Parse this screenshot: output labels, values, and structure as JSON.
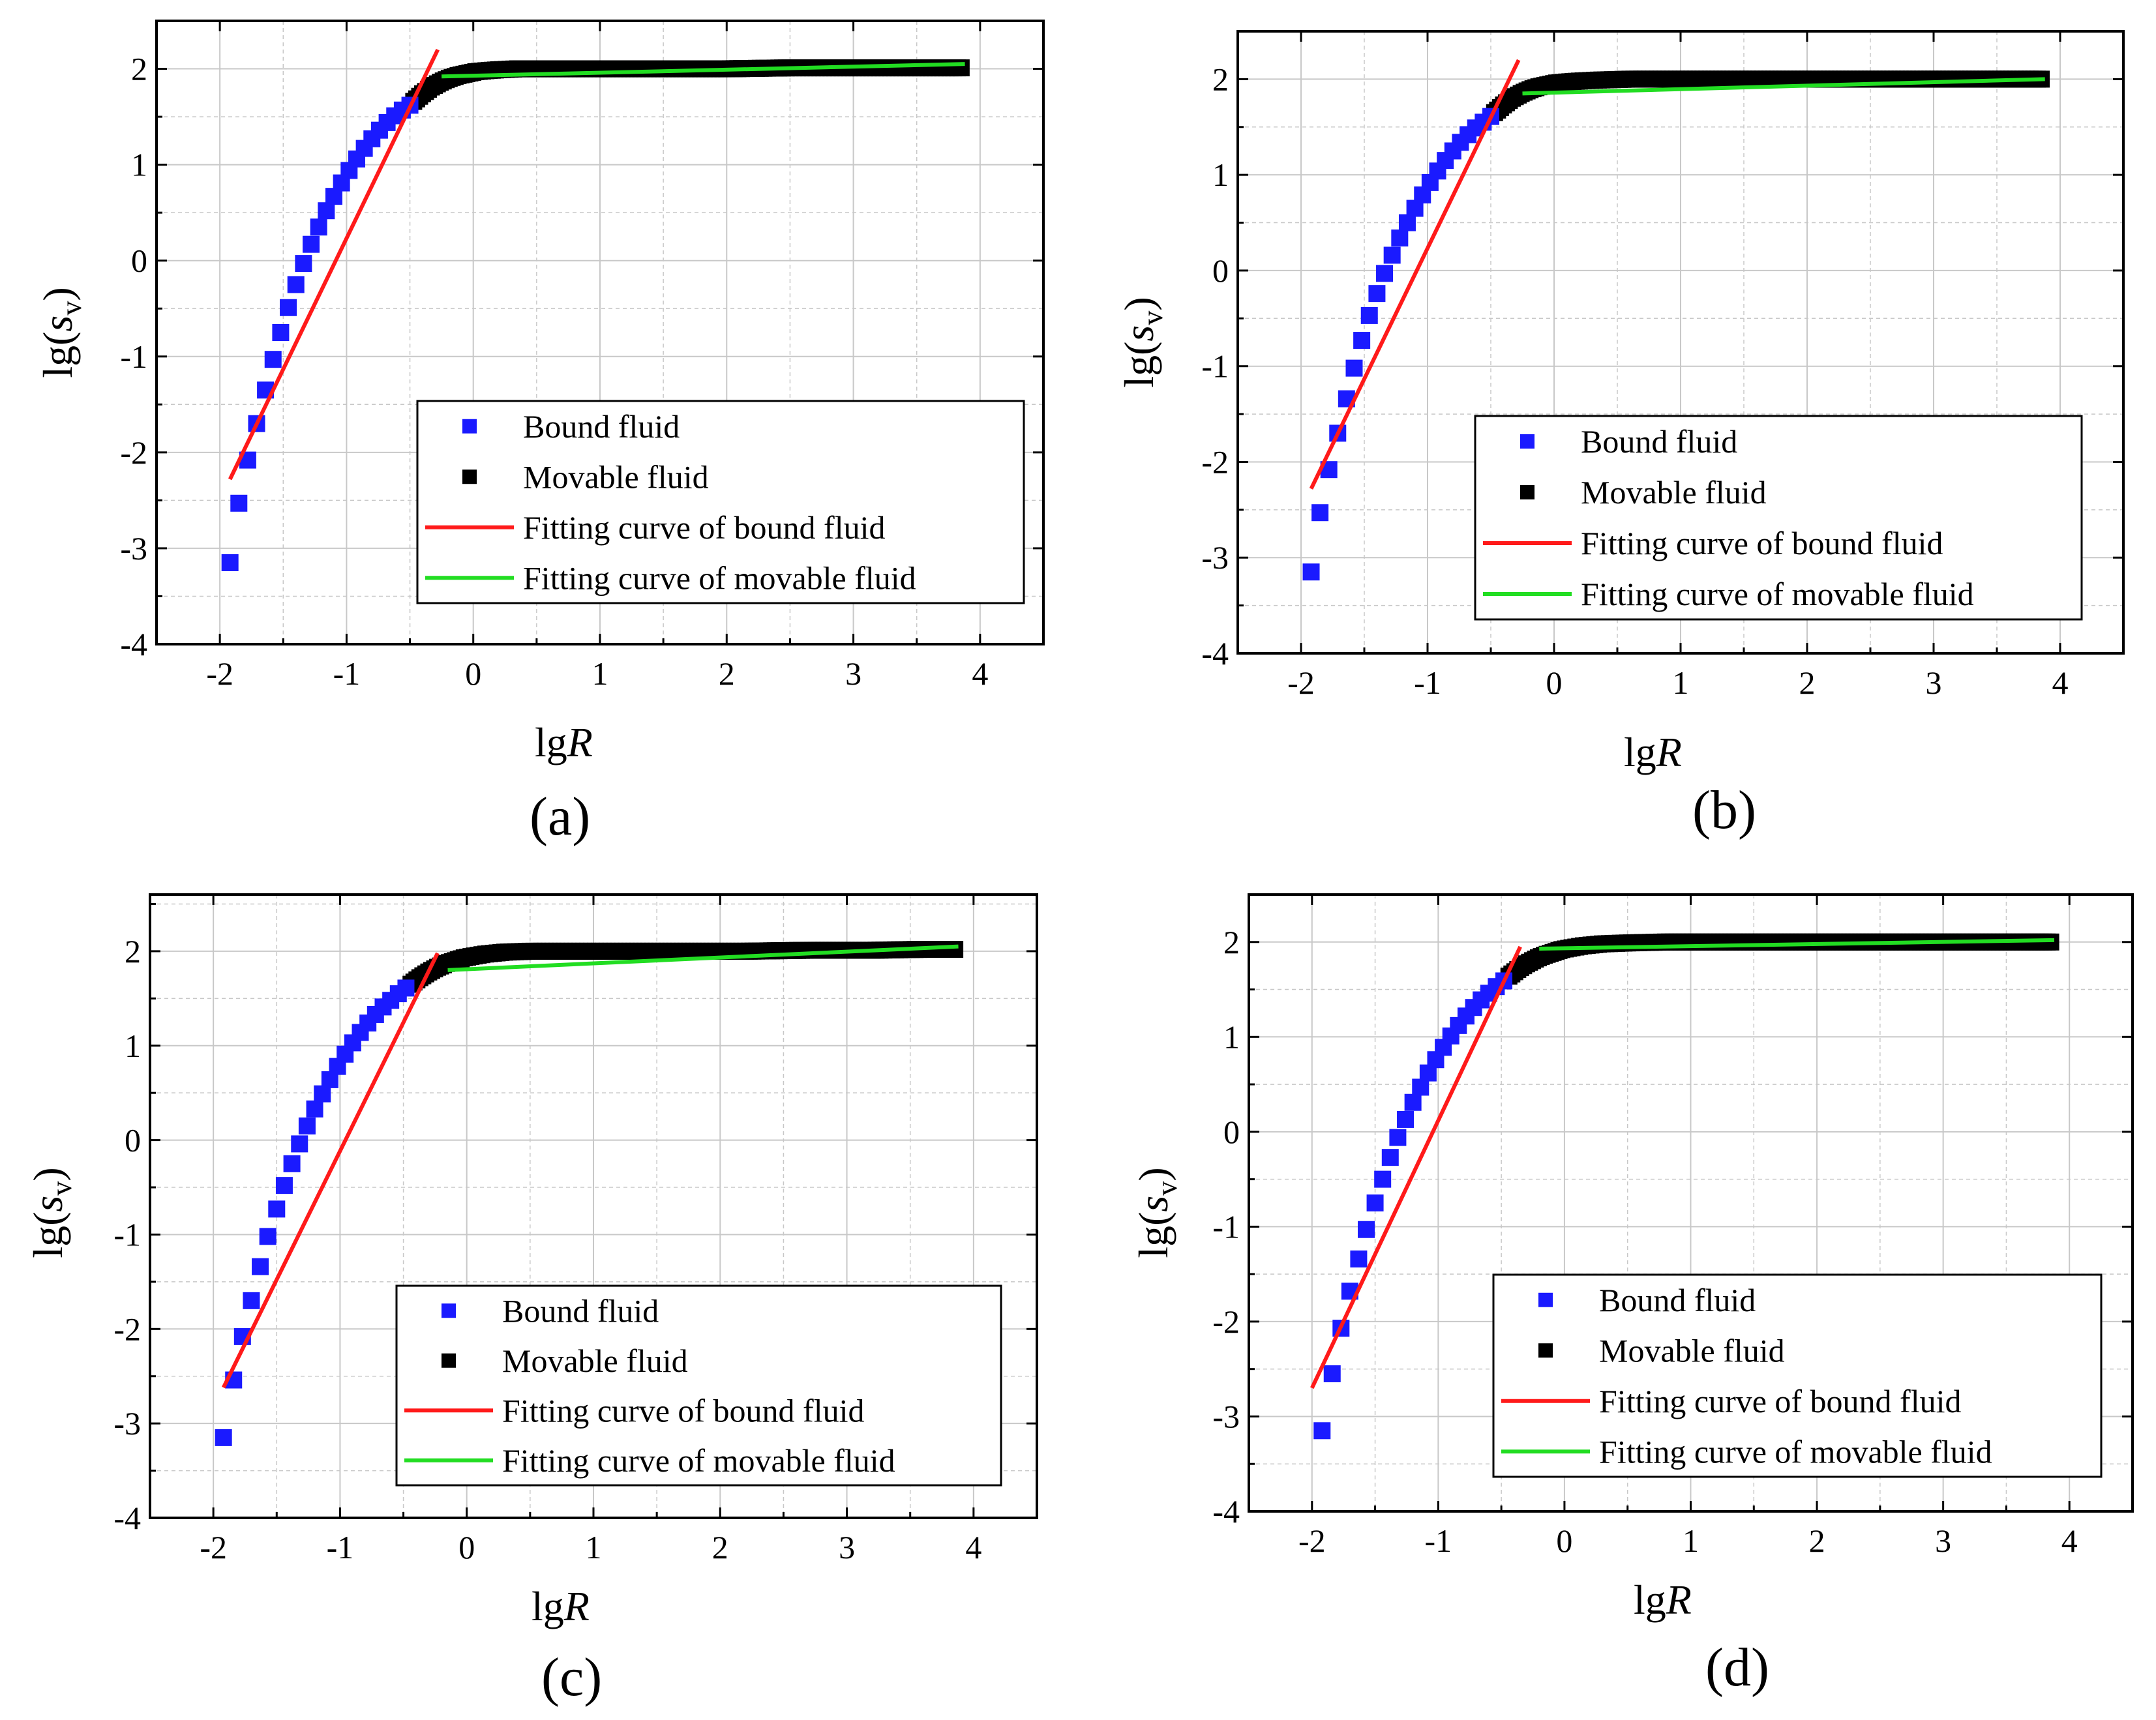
{
  "colors": {
    "bound": "#1a1aff",
    "movable": "#000000",
    "bound_fit": "#ff1a1a",
    "movable_fit": "#22dd22",
    "grid": "#c8c8c8",
    "axis": "#000000"
  },
  "chart_data": [
    {
      "type": "scatter",
      "panel_label": "(a)",
      "xlabel_base": "lg",
      "xlabel_var": "R",
      "ylabel_base": "lg(",
      "ylabel_var": "s",
      "ylabel_sub": "v",
      "ylabel_close": ")",
      "xlim": [
        -2.5,
        4.5
      ],
      "ylim": [
        -4,
        2.5
      ],
      "xticks": [
        -2,
        -1,
        0,
        1,
        2,
        3,
        4
      ],
      "yticks": [
        -4,
        -3,
        -2,
        -1,
        0,
        1,
        2
      ],
      "xtick_labels": [
        "-2",
        "-1",
        "0",
        "1",
        "2",
        "3",
        "4"
      ],
      "ytick_labels": [
        "-4",
        "-3",
        "-2",
        "-1",
        "0",
        "1",
        "2"
      ],
      "legend": [
        "Bound fluid",
        "Movable fluid",
        "Fitting curve of bound fluid",
        "Fitting curve of movable fluid"
      ],
      "legend_position": "lower-right",
      "grid": true,
      "series": [
        {
          "name": "Bound fluid",
          "kind": "points",
          "points": [
            [
              -1.92,
              -3.15
            ],
            [
              -1.85,
              -2.53
            ],
            [
              -1.78,
              -2.08
            ],
            [
              -1.71,
              -1.7
            ],
            [
              -1.64,
              -1.35
            ],
            [
              -1.58,
              -1.03
            ],
            [
              -1.52,
              -0.75
            ],
            [
              -1.46,
              -0.49
            ],
            [
              -1.4,
              -0.25
            ],
            [
              -1.34,
              -0.03
            ],
            [
              -1.28,
              0.17
            ],
            [
              -1.22,
              0.35
            ],
            [
              -1.16,
              0.52
            ],
            [
              -1.1,
              0.67
            ],
            [
              -1.04,
              0.81
            ],
            [
              -0.98,
              0.94
            ],
            [
              -0.92,
              1.06
            ],
            [
              -0.86,
              1.17
            ],
            [
              -0.8,
              1.27
            ],
            [
              -0.74,
              1.36
            ],
            [
              -0.68,
              1.44
            ],
            [
              -0.62,
              1.51
            ],
            [
              -0.56,
              1.57
            ],
            [
              -0.5,
              1.62
            ]
          ]
        },
        {
          "name": "Movable fluid",
          "kind": "band",
          "points": [
            [
              -0.47,
              1.66
            ],
            [
              -0.4,
              1.74
            ],
            [
              -0.33,
              1.81
            ],
            [
              -0.26,
              1.86
            ],
            [
              -0.19,
              1.9
            ],
            [
              -0.12,
              1.93
            ],
            [
              -0.05,
              1.95
            ],
            [
              0.02,
              1.97
            ],
            [
              0.1,
              1.98
            ],
            [
              0.2,
              1.99
            ],
            [
              0.35,
              2.0
            ],
            [
              0.6,
              2.0
            ],
            [
              1.0,
              2.0
            ],
            [
              1.5,
              2.0
            ],
            [
              2.0,
              2.0
            ],
            [
              2.5,
              2.01
            ],
            [
              3.0,
              2.01
            ],
            [
              3.5,
              2.01
            ],
            [
              3.88,
              2.01
            ]
          ]
        },
        {
          "name": "Fitting curve of bound fluid",
          "kind": "line",
          "x": [
            -1.92,
            -0.28
          ],
          "y": [
            -2.28,
            2.2
          ]
        },
        {
          "name": "Fitting curve of movable fluid",
          "kind": "line",
          "x": [
            -0.25,
            3.88
          ],
          "y": [
            1.92,
            2.05
          ]
        }
      ]
    },
    {
      "type": "scatter",
      "panel_label": "(b)",
      "xlabel_base": "lg",
      "xlabel_var": "R",
      "ylabel_base": "lg(",
      "ylabel_var": "s",
      "ylabel_sub": "v",
      "ylabel_close": ")",
      "xlim": [
        -2.5,
        4.5
      ],
      "ylim": [
        -4,
        2.5
      ],
      "xticks": [
        -2,
        -1,
        0,
        1,
        2,
        3,
        4
      ],
      "yticks": [
        -4,
        -3,
        -2,
        -1,
        0,
        1,
        2
      ],
      "xtick_labels": [
        "-2",
        "-1",
        "0",
        "1",
        "2",
        "3",
        "4"
      ],
      "ytick_labels": [
        "-4",
        "-3",
        "-2",
        "-1",
        "0",
        "1",
        "2"
      ],
      "legend": [
        "Bound fluid",
        "Movable fluid",
        "Fitting curve of bound fluid",
        "Fitting curve of movable fluid"
      ],
      "legend_position": "lower-right",
      "grid": true,
      "series": [
        {
          "name": "Bound fluid",
          "kind": "points",
          "points": [
            [
              -1.92,
              -3.15
            ],
            [
              -1.85,
              -2.53
            ],
            [
              -1.78,
              -2.08
            ],
            [
              -1.71,
              -1.7
            ],
            [
              -1.64,
              -1.34
            ],
            [
              -1.58,
              -1.02
            ],
            [
              -1.52,
              -0.73
            ],
            [
              -1.46,
              -0.47
            ],
            [
              -1.4,
              -0.24
            ],
            [
              -1.34,
              -0.03
            ],
            [
              -1.28,
              0.16
            ],
            [
              -1.22,
              0.34
            ],
            [
              -1.16,
              0.5
            ],
            [
              -1.1,
              0.65
            ],
            [
              -1.04,
              0.79
            ],
            [
              -0.98,
              0.92
            ],
            [
              -0.92,
              1.04
            ],
            [
              -0.86,
              1.15
            ],
            [
              -0.8,
              1.25
            ],
            [
              -0.74,
              1.34
            ],
            [
              -0.68,
              1.42
            ],
            [
              -0.62,
              1.49
            ],
            [
              -0.56,
              1.55
            ],
            [
              -0.5,
              1.61
            ]
          ]
        },
        {
          "name": "Movable fluid",
          "kind": "band",
          "points": [
            [
              -0.47,
              1.65
            ],
            [
              -0.4,
              1.73
            ],
            [
              -0.33,
              1.8
            ],
            [
              -0.26,
              1.85
            ],
            [
              -0.19,
              1.89
            ],
            [
              -0.12,
              1.92
            ],
            [
              -0.05,
              1.94
            ],
            [
              0.02,
              1.96
            ],
            [
              0.1,
              1.97
            ],
            [
              0.2,
              1.98
            ],
            [
              0.35,
              1.99
            ],
            [
              0.6,
              2.0
            ],
            [
              1.0,
              2.0
            ],
            [
              1.5,
              2.0
            ],
            [
              2.0,
              2.0
            ],
            [
              2.5,
              2.0
            ],
            [
              3.0,
              2.0
            ],
            [
              3.5,
              2.0
            ],
            [
              3.88,
              2.0
            ]
          ]
        },
        {
          "name": "Fitting curve of bound fluid",
          "kind": "line",
          "x": [
            -1.92,
            -0.28
          ],
          "y": [
            -2.28,
            2.2
          ]
        },
        {
          "name": "Fitting curve of movable fluid",
          "kind": "line",
          "x": [
            -0.25,
            3.88
          ],
          "y": [
            1.85,
            2.0
          ]
        }
      ]
    },
    {
      "type": "scatter",
      "panel_label": "(c)",
      "xlabel_base": "lg",
      "xlabel_var": "R",
      "ylabel_base": "lg(",
      "ylabel_var": "s",
      "ylabel_sub": "v",
      "ylabel_close": ")",
      "xlim": [
        -2.5,
        4.5
      ],
      "ylim": [
        -4,
        2.6
      ],
      "xticks": [
        -2,
        -1,
        0,
        1,
        2,
        3,
        4
      ],
      "yticks": [
        -4,
        -3,
        -2,
        -1,
        0,
        1,
        2
      ],
      "xtick_labels": [
        "-2",
        "-1",
        "0",
        "1",
        "2",
        "3",
        "4"
      ],
      "ytick_labels": [
        "-4",
        "-3",
        "-2",
        "-1",
        "0",
        "1",
        "2"
      ],
      "legend": [
        "Bound fluid",
        "Movable fluid",
        "Fitting curve of bound fluid",
        "Fitting curve of movable fluid"
      ],
      "legend_position": "lower-right",
      "grid": true,
      "series": [
        {
          "name": "Bound fluid",
          "kind": "points",
          "points": [
            [
              -1.92,
              -3.15
            ],
            [
              -1.84,
              -2.54
            ],
            [
              -1.77,
              -2.08
            ],
            [
              -1.7,
              -1.7
            ],
            [
              -1.63,
              -1.34
            ],
            [
              -1.57,
              -1.02
            ],
            [
              -1.5,
              -0.73
            ],
            [
              -1.44,
              -0.48
            ],
            [
              -1.38,
              -0.25
            ],
            [
              -1.32,
              -0.04
            ],
            [
              -1.26,
              0.15
            ],
            [
              -1.2,
              0.33
            ],
            [
              -1.14,
              0.49
            ],
            [
              -1.08,
              0.64
            ],
            [
              -1.02,
              0.78
            ],
            [
              -0.96,
              0.91
            ],
            [
              -0.9,
              1.03
            ],
            [
              -0.84,
              1.14
            ],
            [
              -0.78,
              1.24
            ],
            [
              -0.72,
              1.33
            ],
            [
              -0.66,
              1.41
            ],
            [
              -0.6,
              1.48
            ],
            [
              -0.54,
              1.55
            ],
            [
              -0.48,
              1.61
            ]
          ]
        },
        {
          "name": "Movable fluid",
          "kind": "band",
          "points": [
            [
              -0.44,
              1.65
            ],
            [
              -0.37,
              1.72
            ],
            [
              -0.3,
              1.78
            ],
            [
              -0.23,
              1.83
            ],
            [
              -0.16,
              1.87
            ],
            [
              -0.09,
              1.9
            ],
            [
              -0.02,
              1.93
            ],
            [
              0.06,
              1.95
            ],
            [
              0.15,
              1.97
            ],
            [
              0.3,
              1.99
            ],
            [
              0.5,
              2.0
            ],
            [
              0.8,
              2.0
            ],
            [
              1.2,
              2.0
            ],
            [
              1.7,
              2.0
            ],
            [
              2.2,
              2.0
            ],
            [
              2.7,
              2.01
            ],
            [
              3.2,
              2.01
            ],
            [
              3.6,
              2.02
            ],
            [
              3.88,
              2.02
            ]
          ]
        },
        {
          "name": "Fitting curve of bound fluid",
          "kind": "line",
          "x": [
            -1.92,
            -0.23
          ],
          "y": [
            -2.62,
            1.98
          ]
        },
        {
          "name": "Fitting curve of movable fluid",
          "kind": "line",
          "x": [
            -0.15,
            3.88
          ],
          "y": [
            1.8,
            2.05
          ]
        }
      ]
    },
    {
      "type": "scatter",
      "panel_label": "(d)",
      "xlabel_base": "lg",
      "xlabel_var": "R",
      "ylabel_base": "lg(",
      "ylabel_var": "s",
      "ylabel_sub": "v",
      "ylabel_close": ")",
      "xlim": [
        -2.5,
        4.5
      ],
      "ylim": [
        -4,
        2.5
      ],
      "xticks": [
        -2,
        -1,
        0,
        1,
        2,
        3,
        4
      ],
      "yticks": [
        -4,
        -3,
        -2,
        -1,
        0,
        1,
        2
      ],
      "xtick_labels": [
        "-2",
        "-1",
        "0",
        "1",
        "2",
        "3",
        "4"
      ],
      "ytick_labels": [
        "-4",
        "-3",
        "-2",
        "-1",
        "0",
        "1",
        "2"
      ],
      "legend": [
        "Bound fluid",
        "Movable fluid",
        "Fitting curve of bound fluid",
        "Fitting curve of movable fluid"
      ],
      "legend_position": "lower-right",
      "grid": true,
      "series": [
        {
          "name": "Bound fluid",
          "kind": "points",
          "points": [
            [
              -1.92,
              -3.15
            ],
            [
              -1.84,
              -2.55
            ],
            [
              -1.77,
              -2.07
            ],
            [
              -1.7,
              -1.68
            ],
            [
              -1.63,
              -1.34
            ],
            [
              -1.57,
              -1.03
            ],
            [
              -1.5,
              -0.75
            ],
            [
              -1.44,
              -0.5
            ],
            [
              -1.38,
              -0.27
            ],
            [
              -1.32,
              -0.06
            ],
            [
              -1.26,
              0.13
            ],
            [
              -1.2,
              0.31
            ],
            [
              -1.14,
              0.47
            ],
            [
              -1.08,
              0.62
            ],
            [
              -1.02,
              0.76
            ],
            [
              -0.96,
              0.89
            ],
            [
              -0.9,
              1.01
            ],
            [
              -0.84,
              1.12
            ],
            [
              -0.78,
              1.22
            ],
            [
              -0.72,
              1.31
            ],
            [
              -0.66,
              1.39
            ],
            [
              -0.6,
              1.46
            ],
            [
              -0.54,
              1.53
            ],
            [
              -0.48,
              1.59
            ]
          ]
        },
        {
          "name": "Movable fluid",
          "kind": "band",
          "points": [
            [
              -0.44,
              1.64
            ],
            [
              -0.37,
              1.71
            ],
            [
              -0.3,
              1.77
            ],
            [
              -0.23,
              1.82
            ],
            [
              -0.16,
              1.86
            ],
            [
              -0.09,
              1.89
            ],
            [
              -0.02,
              1.92
            ],
            [
              0.06,
              1.94
            ],
            [
              0.15,
              1.96
            ],
            [
              0.3,
              1.98
            ],
            [
              0.5,
              1.99
            ],
            [
              0.8,
              2.0
            ],
            [
              1.2,
              2.0
            ],
            [
              1.7,
              2.0
            ],
            [
              2.2,
              2.0
            ],
            [
              2.7,
              2.0
            ],
            [
              3.2,
              2.0
            ],
            [
              3.6,
              2.0
            ],
            [
              3.88,
              2.0
            ]
          ]
        },
        {
          "name": "Fitting curve of bound fluid",
          "kind": "line",
          "x": [
            -2.0,
            -0.35
          ],
          "y": [
            -2.7,
            1.95
          ]
        },
        {
          "name": "Fitting curve of movable fluid",
          "kind": "line",
          "x": [
            -0.2,
            3.88
          ],
          "y": [
            1.93,
            2.02
          ]
        }
      ]
    }
  ]
}
